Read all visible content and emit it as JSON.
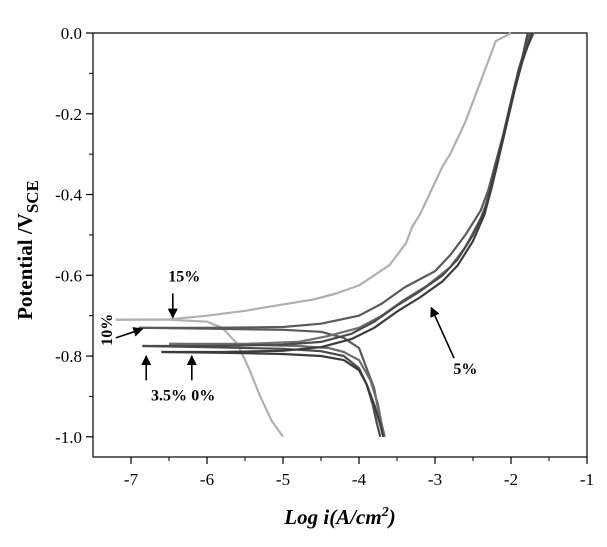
{
  "chart_data": {
    "type": "line",
    "title": "",
    "xlabel": {
      "text": "Log i(A/cm",
      "sup": "2",
      "end": ")"
    },
    "ylabel": {
      "text": "Potential /V",
      "sub": "SCE"
    },
    "xlim": [
      -7.5,
      -1
    ],
    "ylim": [
      -1.05,
      0
    ],
    "xticks": [
      -7,
      -6,
      -5,
      -4,
      -3,
      -2,
      -1
    ],
    "xtick_labels": [
      "-7",
      "-6",
      "-5",
      "-4",
      "-3",
      "-2",
      "-1"
    ],
    "yticks": [
      0.0,
      -0.2,
      -0.4,
      -0.6,
      -0.8,
      -1.0
    ],
    "ytick_labels": [
      "0.0",
      "-0.2",
      "-0.4",
      "-0.6",
      "-0.8",
      "-1.0"
    ],
    "grid": false,
    "series": [
      {
        "name": "15%",
        "color": "#b0b0b0",
        "anodic": [
          [
            -7.2,
            -0.71
          ],
          [
            -6.5,
            -0.709
          ],
          [
            -6.0,
            -0.7
          ],
          [
            -5.5,
            -0.688
          ],
          [
            -5.0,
            -0.672
          ],
          [
            -4.6,
            -0.66
          ],
          [
            -4.3,
            -0.645
          ],
          [
            -4.0,
            -0.625
          ],
          [
            -3.8,
            -0.6
          ],
          [
            -3.6,
            -0.575
          ],
          [
            -3.5,
            -0.55
          ],
          [
            -3.38,
            -0.52
          ],
          [
            -3.3,
            -0.48
          ],
          [
            -3.2,
            -0.45
          ],
          [
            -3.1,
            -0.41
          ],
          [
            -3.0,
            -0.37
          ],
          [
            -2.9,
            -0.33
          ],
          [
            -2.8,
            -0.3
          ],
          [
            -2.7,
            -0.26
          ],
          [
            -2.6,
            -0.22
          ],
          [
            -2.5,
            -0.17
          ],
          [
            -2.4,
            -0.12
          ],
          [
            -2.3,
            -0.07
          ],
          [
            -2.2,
            -0.02
          ],
          [
            -2.0,
            0.0
          ]
        ],
        "cathodic": [
          [
            -7.2,
            -0.71
          ],
          [
            -6.5,
            -0.71
          ],
          [
            -6.0,
            -0.715
          ],
          [
            -5.8,
            -0.73
          ],
          [
            -5.6,
            -0.77
          ],
          [
            -5.45,
            -0.83
          ],
          [
            -5.3,
            -0.9
          ],
          [
            -5.15,
            -0.96
          ],
          [
            -5.0,
            -1.0
          ]
        ]
      },
      {
        "name": "10%",
        "color": "#5a5a5a",
        "anodic": [
          [
            -6.9,
            -0.73
          ],
          [
            -6.0,
            -0.73
          ],
          [
            -5.0,
            -0.728
          ],
          [
            -4.5,
            -0.72
          ],
          [
            -4.0,
            -0.7
          ],
          [
            -3.7,
            -0.67
          ],
          [
            -3.4,
            -0.63
          ],
          [
            -3.0,
            -0.59
          ],
          [
            -2.8,
            -0.55
          ],
          [
            -2.6,
            -0.5
          ],
          [
            -2.4,
            -0.44
          ],
          [
            -2.3,
            -0.39
          ],
          [
            -2.2,
            -0.32
          ],
          [
            -2.1,
            -0.25
          ],
          [
            -2.0,
            -0.17
          ],
          [
            -1.9,
            -0.09
          ],
          [
            -1.8,
            -0.03
          ],
          [
            -1.75,
            0.0
          ]
        ],
        "cathodic": [
          [
            -6.9,
            -0.73
          ],
          [
            -6.0,
            -0.732
          ],
          [
            -5.0,
            -0.735
          ],
          [
            -4.5,
            -0.74
          ],
          [
            -4.2,
            -0.755
          ],
          [
            -4.0,
            -0.78
          ],
          [
            -3.9,
            -0.83
          ],
          [
            -3.8,
            -0.88
          ],
          [
            -3.75,
            -0.93
          ],
          [
            -3.7,
            -0.97
          ],
          [
            -3.68,
            -1.0
          ]
        ]
      },
      {
        "name": "5%",
        "color": "#6e6e6e",
        "anodic": [
          [
            -6.5,
            -0.77
          ],
          [
            -5.5,
            -0.77
          ],
          [
            -4.8,
            -0.765
          ],
          [
            -4.4,
            -0.75
          ],
          [
            -4.0,
            -0.73
          ],
          [
            -3.7,
            -0.7
          ],
          [
            -3.4,
            -0.66
          ],
          [
            -3.1,
            -0.625
          ],
          [
            -2.8,
            -0.58
          ],
          [
            -2.6,
            -0.53
          ],
          [
            -2.4,
            -0.46
          ],
          [
            -2.3,
            -0.41
          ],
          [
            -2.2,
            -0.34
          ],
          [
            -2.1,
            -0.26
          ],
          [
            -2.0,
            -0.18
          ],
          [
            -1.9,
            -0.1
          ],
          [
            -1.8,
            -0.04
          ],
          [
            -1.7,
            0.0
          ]
        ],
        "cathodic": [
          [
            -6.5,
            -0.77
          ],
          [
            -5.5,
            -0.772
          ],
          [
            -4.8,
            -0.775
          ],
          [
            -4.4,
            -0.78
          ],
          [
            -4.2,
            -0.79
          ],
          [
            -4.0,
            -0.81
          ],
          [
            -3.85,
            -0.86
          ],
          [
            -3.75,
            -0.92
          ],
          [
            -3.7,
            -0.97
          ],
          [
            -3.66,
            -1.0
          ]
        ]
      },
      {
        "name": "3.5%",
        "color": "#4a4a4a",
        "anodic": [
          [
            -6.85,
            -0.775
          ],
          [
            -6.0,
            -0.775
          ],
          [
            -5.0,
            -0.772
          ],
          [
            -4.5,
            -0.765
          ],
          [
            -4.1,
            -0.745
          ],
          [
            -3.8,
            -0.715
          ],
          [
            -3.5,
            -0.675
          ],
          [
            -3.2,
            -0.64
          ],
          [
            -2.9,
            -0.6
          ],
          [
            -2.7,
            -0.56
          ],
          [
            -2.5,
            -0.5
          ],
          [
            -2.35,
            -0.44
          ],
          [
            -2.25,
            -0.37
          ],
          [
            -2.15,
            -0.29
          ],
          [
            -2.05,
            -0.21
          ],
          [
            -1.95,
            -0.13
          ],
          [
            -1.85,
            -0.06
          ],
          [
            -1.78,
            0.0
          ]
        ],
        "cathodic": [
          [
            -6.85,
            -0.775
          ],
          [
            -6.0,
            -0.778
          ],
          [
            -5.0,
            -0.782
          ],
          [
            -4.5,
            -0.788
          ],
          [
            -4.2,
            -0.8
          ],
          [
            -4.0,
            -0.83
          ],
          [
            -3.9,
            -0.87
          ],
          [
            -3.82,
            -0.92
          ],
          [
            -3.76,
            -0.97
          ],
          [
            -3.72,
            -1.0
          ]
        ]
      },
      {
        "name": "0%",
        "color": "#3c3c3c",
        "anodic": [
          [
            -6.6,
            -0.79
          ],
          [
            -5.8,
            -0.79
          ],
          [
            -5.0,
            -0.787
          ],
          [
            -4.5,
            -0.778
          ],
          [
            -4.1,
            -0.758
          ],
          [
            -3.8,
            -0.73
          ],
          [
            -3.5,
            -0.69
          ],
          [
            -3.2,
            -0.655
          ],
          [
            -2.9,
            -0.615
          ],
          [
            -2.7,
            -0.575
          ],
          [
            -2.5,
            -0.515
          ],
          [
            -2.35,
            -0.45
          ],
          [
            -2.25,
            -0.38
          ],
          [
            -2.15,
            -0.3
          ],
          [
            -2.05,
            -0.22
          ],
          [
            -1.95,
            -0.14
          ],
          [
            -1.85,
            -0.07
          ],
          [
            -1.72,
            0.0
          ]
        ],
        "cathodic": [
          [
            -6.6,
            -0.79
          ],
          [
            -5.8,
            -0.792
          ],
          [
            -5.0,
            -0.795
          ],
          [
            -4.5,
            -0.8
          ],
          [
            -4.2,
            -0.81
          ],
          [
            -4.0,
            -0.835
          ],
          [
            -3.9,
            -0.87
          ],
          [
            -3.8,
            -0.92
          ],
          [
            -3.72,
            -0.97
          ],
          [
            -3.68,
            -1.0
          ]
        ]
      }
    ],
    "annotations": [
      {
        "text": "15%",
        "x": -6.3,
        "y": -0.615,
        "arrow_from": [
          -6.45,
          -0.645
        ],
        "arrow_to": [
          -6.45,
          -0.705
        ]
      },
      {
        "text": "10%",
        "x": -7.25,
        "y": -0.735,
        "rotate": -90,
        "arrow_from": [
          -7.2,
          -0.755
        ],
        "arrow_to": [
          -6.85,
          -0.733
        ]
      },
      {
        "text": "5%",
        "x": -2.6,
        "y": -0.845,
        "arrow_from": [
          -2.75,
          -0.805
        ],
        "arrow_to": [
          -3.05,
          -0.68
        ]
      },
      {
        "text": "3.5%",
        "x": -6.5,
        "y": -0.91,
        "arrow_from": [
          -6.8,
          -0.86
        ],
        "arrow_to": [
          -6.8,
          -0.8
        ]
      },
      {
        "text": "0%",
        "x": -6.05,
        "y": -0.91,
        "arrow_from": [
          -6.2,
          -0.86
        ],
        "arrow_to": [
          -6.2,
          -0.8
        ]
      }
    ]
  }
}
